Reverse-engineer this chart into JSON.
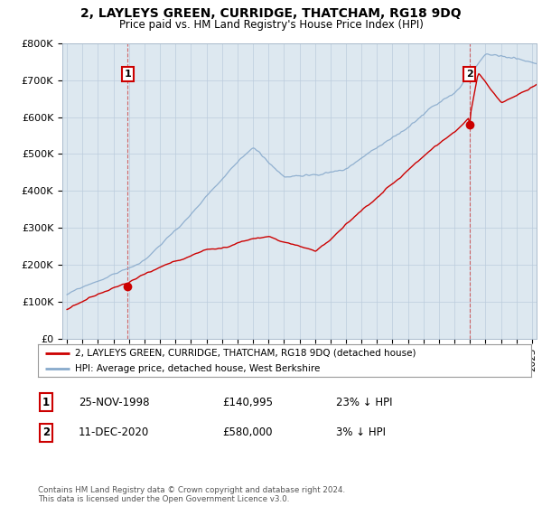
{
  "title1": "2, LAYLEYS GREEN, CURRIDGE, THATCHAM, RG18 9DQ",
  "title2": "Price paid vs. HM Land Registry's House Price Index (HPI)",
  "ylim": [
    0,
    800000
  ],
  "yticks": [
    0,
    100000,
    200000,
    300000,
    400000,
    500000,
    600000,
    700000,
    800000
  ],
  "ytick_labels": [
    "£0",
    "£100K",
    "£200K",
    "£300K",
    "£400K",
    "£500K",
    "£600K",
    "£700K",
    "£800K"
  ],
  "xlim_start": 1994.7,
  "xlim_end": 2025.3,
  "sale1_x": 1998.92,
  "sale1_y": 140995,
  "sale1_label": "1",
  "sale2_x": 2020.96,
  "sale2_y": 580000,
  "sale2_label": "2",
  "legend_line1": "2, LAYLEYS GREEN, CURRIDGE, THATCHAM, RG18 9DQ (detached house)",
  "legend_line2": "HPI: Average price, detached house, West Berkshire",
  "table_row1": [
    "1",
    "25-NOV-1998",
    "£140,995",
    "23% ↓ HPI"
  ],
  "table_row2": [
    "2",
    "11-DEC-2020",
    "£580,000",
    "3% ↓ HPI"
  ],
  "footnote": "Contains HM Land Registry data © Crown copyright and database right 2024.\nThis data is licensed under the Open Government Licence v3.0.",
  "line_color_red": "#cc0000",
  "line_color_blue": "#88aacc",
  "bg_color": "#ffffff",
  "chart_bg": "#dde8f0",
  "grid_color": "#bbccdd"
}
